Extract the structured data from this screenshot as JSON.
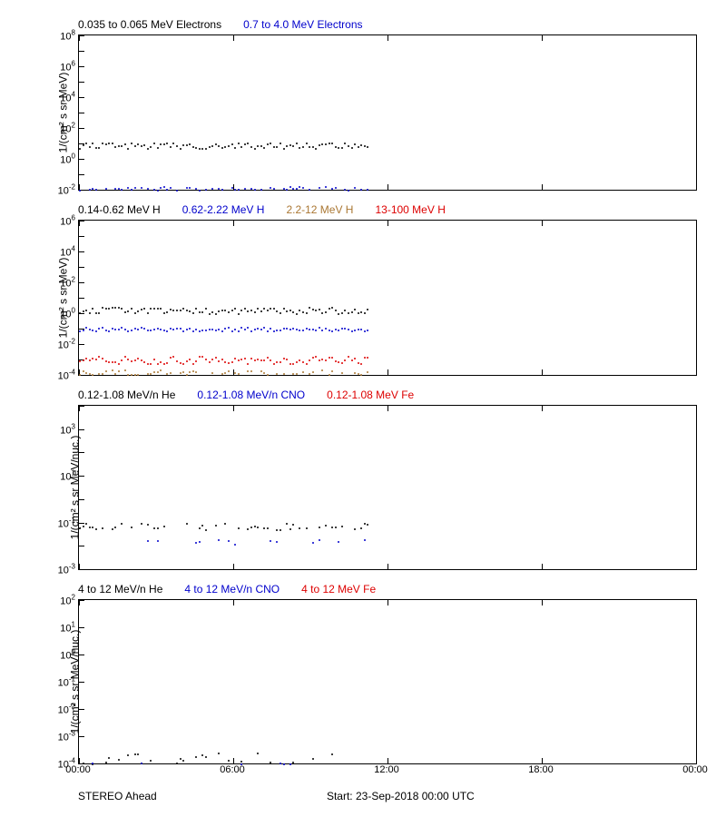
{
  "footer": {
    "left": "STEREO Ahead",
    "center": "Start: 23-Sep-2018 00:00 UTC"
  },
  "xaxis": {
    "ticks": [
      "00:00",
      "06:00",
      "12:00",
      "18:00",
      "00:00"
    ],
    "xlim": [
      0,
      24
    ],
    "data_extent": 11.2
  },
  "colors": {
    "black": "#000000",
    "blue": "#0000cc",
    "red": "#dd0000",
    "brown": "#aa7733",
    "grid": "#000000",
    "bg": "#ffffff"
  },
  "panels": [
    {
      "id": "p1",
      "height": 170,
      "ylabel": "1/(cm² s sr MeV)",
      "log": [
        -2,
        8
      ],
      "legend": [
        {
          "text": "0.035 to 0.065 MeV Electrons",
          "color": "#000000"
        },
        {
          "text": "0.7 to 4.0 MeV Electrons",
          "color": "#0000cc"
        }
      ],
      "series": [
        {
          "color": "#000000",
          "mean": 0.9,
          "jitter": 0.18,
          "dense": true
        },
        {
          "color": "#0000cc",
          "mean": -1.95,
          "jitter": 0.18,
          "dense": true
        }
      ]
    },
    {
      "id": "p2",
      "height": 170,
      "ylabel": "1/(cm² s sr MeV)",
      "log": [
        -4,
        6
      ],
      "legend": [
        {
          "text": "0.14-0.62 MeV H",
          "color": "#000000"
        },
        {
          "text": "0.62-2.22 MeV H",
          "color": "#0000cc"
        },
        {
          "text": "2.2-12 MeV H",
          "color": "#aa7733"
        },
        {
          "text": "13-100 MeV H",
          "color": "#dd0000"
        }
      ],
      "series": [
        {
          "color": "#000000",
          "mean": 0.2,
          "jitter": 0.2,
          "dense": true
        },
        {
          "color": "#0000cc",
          "mean": -1.0,
          "jitter": 0.12,
          "dense": true
        },
        {
          "color": "#dd0000",
          "mean": -3.0,
          "jitter": 0.25,
          "dense": true
        },
        {
          "color": "#aa7733",
          "mean": -3.8,
          "jitter": 0.15,
          "dense": true,
          "sparse": 0.6
        }
      ]
    },
    {
      "id": "p3",
      "height": 180,
      "ylabel": "1/(cm² s sr MeV/nuc.)",
      "log": [
        -3,
        4
      ],
      "legend": [
        {
          "text": "0.12-1.08 MeV/n He",
          "color": "#000000"
        },
        {
          "text": "0.12-1.08 MeV/n CNO",
          "color": "#0000cc"
        },
        {
          "text": "0.12-1.08 MeV Fe",
          "color": "#dd0000"
        }
      ],
      "series": [
        {
          "color": "#000000",
          "mean": -1.15,
          "jitter": 0.15,
          "dense": true,
          "sparse": 0.45
        },
        {
          "color": "#0000cc",
          "mean": -1.8,
          "jitter": 0.1,
          "dense": true,
          "sparse": 0.2
        }
      ]
    },
    {
      "id": "p4",
      "height": 180,
      "ylabel": "1/(cm² s sr MeV/nuc.)",
      "log": [
        -4,
        2
      ],
      "legend": [
        {
          "text": "4 to 12 MeV/n He",
          "color": "#000000"
        },
        {
          "text": "4 to 12 MeV/n CNO",
          "color": "#0000cc"
        },
        {
          "text": "4 to 12 MeV Fe",
          "color": "#dd0000"
        }
      ],
      "series": [
        {
          "color": "#000000",
          "mean": -3.85,
          "jitter": 0.25,
          "dense": true,
          "sparse": 0.3
        },
        {
          "color": "#0000cc",
          "mean": -4.0,
          "jitter": 0.02,
          "dense": true,
          "sparse": 0.15
        }
      ]
    }
  ]
}
